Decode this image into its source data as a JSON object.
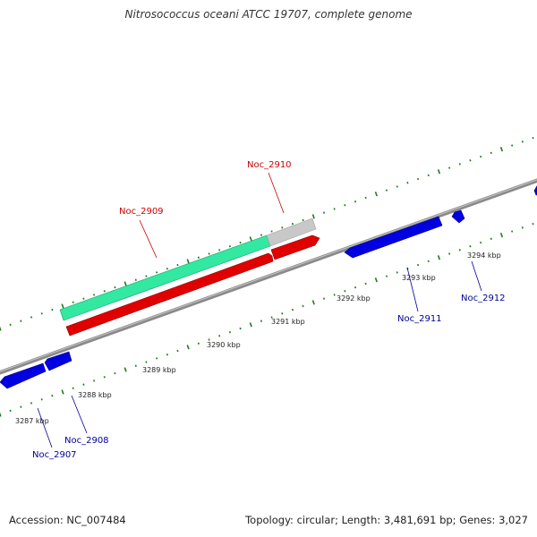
{
  "title": "Nitrosococcus oceani ATCC 19707, complete genome",
  "footer": {
    "accession": "Accession: NC_007484",
    "summary": "Topology: circular; Length: 3,481,691 bp; Genes: 3,027"
  },
  "colors": {
    "backbone": "#8a8a8a",
    "tick": "#1f7a1f",
    "forward_cds": "#e00000",
    "reverse_cds": "#0000e0",
    "gene_fill": "#33e8a0",
    "gene_partial": "#c8c8c8",
    "label_forward": "#cc0000",
    "label_reverse": "#000099"
  },
  "scale_labels": [
    "3287 kbp",
    "3288 kbp",
    "3289 kbp",
    "3290 kbp",
    "3291 kbp",
    "3292 kbp",
    "3293 kbp",
    "3294 kbp"
  ],
  "gene_labels": [
    {
      "id": "Noc_2907",
      "strand": "reverse"
    },
    {
      "id": "Noc_2908",
      "strand": "reverse"
    },
    {
      "id": "Noc_2909",
      "strand": "forward"
    },
    {
      "id": "Noc_2910",
      "strand": "forward"
    },
    {
      "id": "Noc_2911",
      "strand": "reverse"
    },
    {
      "id": "Noc_2912",
      "strand": "reverse"
    }
  ]
}
